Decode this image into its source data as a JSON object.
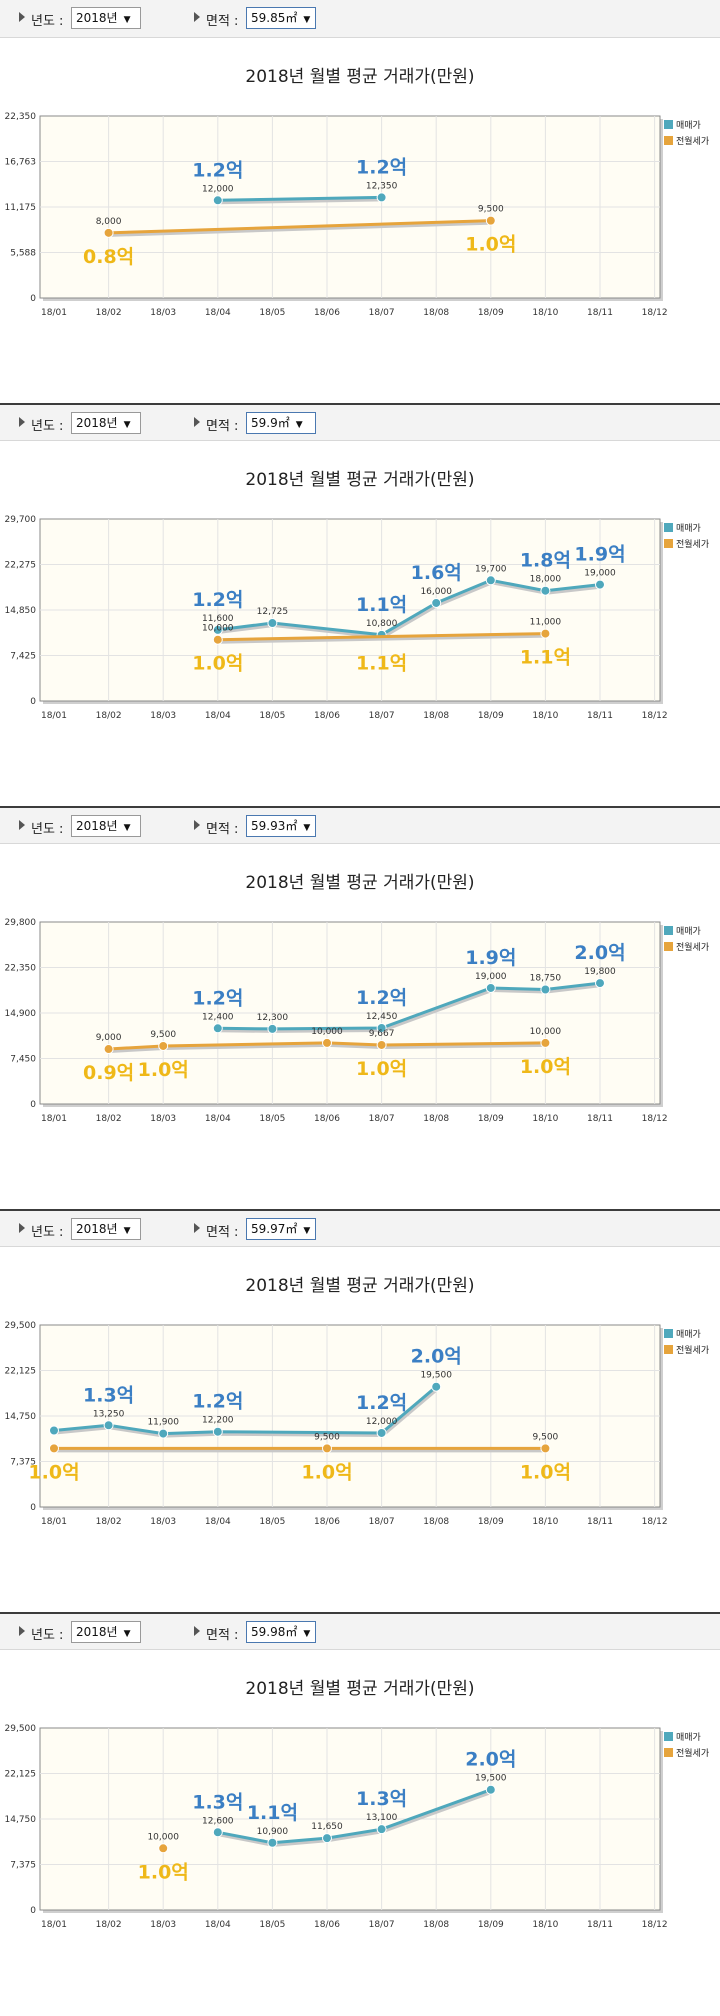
{
  "colors": {
    "trade": "#4fa8bc",
    "jeonse": "#e6a43c",
    "trade_label": "#3b7fc4",
    "jeonse_label": "#efb818",
    "plot_bg": "#fffdf4",
    "grid": "#e3e3e3"
  },
  "controls": {
    "year_label": "년도 :",
    "area_label": "면적 :",
    "year_value": "2018년"
  },
  "icons": [
    "dropdown-arrow-icon",
    "caret-down-icon"
  ],
  "chart_data": [
    {
      "type": "line",
      "area_value": "59.85㎡",
      "title": "2018년 월별 평균 거래가(만원)",
      "categories": [
        "18/01",
        "18/02",
        "18/03",
        "18/04",
        "18/05",
        "18/06",
        "18/07",
        "18/08",
        "18/09",
        "18/10",
        "18/11",
        "18/12"
      ],
      "yticks": [
        "0",
        "5,588",
        "11,175",
        "16,763",
        "22,350"
      ],
      "ylim": [
        0,
        22350
      ],
      "legend": [
        "매매가",
        "전월세가"
      ],
      "legend_position": "top-right",
      "grid": true,
      "series": [
        {
          "name": "매매가",
          "values": [
            null,
            null,
            null,
            12000,
            null,
            null,
            12350,
            null,
            null,
            null,
            null,
            null
          ],
          "labels": [
            null,
            null,
            null,
            "12,000",
            null,
            null,
            "12,350",
            null,
            null,
            null,
            null,
            null
          ],
          "big_labels": [
            null,
            null,
            null,
            "1.2억",
            null,
            null,
            "1.2억",
            null,
            null,
            null,
            null,
            null
          ]
        },
        {
          "name": "전월세가",
          "values": [
            null,
            8000,
            null,
            null,
            null,
            null,
            null,
            null,
            9500,
            null,
            null,
            null
          ],
          "labels": [
            null,
            "8,000",
            null,
            null,
            null,
            null,
            null,
            null,
            "9,500",
            null,
            null,
            null
          ],
          "big_labels": [
            null,
            "0.8억",
            null,
            null,
            null,
            null,
            null,
            null,
            "1.0억",
            null,
            null,
            null
          ]
        }
      ]
    },
    {
      "type": "line",
      "area_value": "59.9㎡",
      "title": "2018년 월별 평균 거래가(만원)",
      "categories": [
        "18/01",
        "18/02",
        "18/03",
        "18/04",
        "18/05",
        "18/06",
        "18/07",
        "18/08",
        "18/09",
        "18/10",
        "18/11",
        "18/12"
      ],
      "yticks": [
        "0",
        "7,425",
        "14,850",
        "22,275",
        "29,700"
      ],
      "ylim": [
        0,
        29700
      ],
      "legend": [
        "매매가",
        "전월세가"
      ],
      "legend_position": "top-right",
      "grid": true,
      "series": [
        {
          "name": "매매가",
          "values": [
            null,
            null,
            null,
            11600,
            12725,
            null,
            10800,
            16000,
            19700,
            18000,
            19000,
            null
          ],
          "labels": [
            null,
            null,
            null,
            "11,600",
            "12,725",
            null,
            "10,800",
            "16,000",
            "19,700",
            "18,000",
            "19,000",
            null
          ],
          "big_labels": [
            null,
            null,
            null,
            "1.2억",
            null,
            null,
            "1.1억",
            "1.6억",
            null,
            "1.8억",
            "1.9억",
            null
          ]
        },
        {
          "name": "전월세가",
          "values": [
            null,
            null,
            null,
            10000,
            null,
            null,
            null,
            null,
            null,
            11000,
            null,
            null
          ],
          "labels": [
            null,
            null,
            null,
            "10,000",
            null,
            null,
            null,
            null,
            null,
            "11,000",
            null,
            null
          ],
          "big_labels": [
            null,
            null,
            null,
            "1.0억",
            null,
            null,
            "1.1억",
            null,
            null,
            "1.1억",
            null,
            null
          ]
        }
      ]
    },
    {
      "type": "line",
      "area_value": "59.93㎡",
      "title": "2018년 월별 평균 거래가(만원)",
      "categories": [
        "18/01",
        "18/02",
        "18/03",
        "18/04",
        "18/05",
        "18/06",
        "18/07",
        "18/08",
        "18/09",
        "18/10",
        "18/11",
        "18/12"
      ],
      "yticks": [
        "0",
        "7,450",
        "14,900",
        "22,350",
        "29,800"
      ],
      "ylim": [
        0,
        29800
      ],
      "legend": [
        "매매가",
        "전월세가"
      ],
      "legend_position": "top-right",
      "grid": true,
      "series": [
        {
          "name": "매매가",
          "values": [
            null,
            null,
            null,
            12400,
            12300,
            null,
            12450,
            null,
            19000,
            18750,
            19800,
            null
          ],
          "labels": [
            null,
            null,
            null,
            "12,400",
            "12,300",
            null,
            "12,450",
            null,
            "19,000",
            "18,750",
            "19,800",
            null
          ],
          "big_labels": [
            null,
            null,
            null,
            "1.2억",
            null,
            null,
            "1.2억",
            null,
            "1.9억",
            null,
            "2.0억",
            null
          ]
        },
        {
          "name": "전월세가",
          "values": [
            null,
            9000,
            9500,
            null,
            null,
            10000,
            9667,
            null,
            null,
            10000,
            null,
            null
          ],
          "labels": [
            null,
            "9,000",
            "9,500",
            null,
            null,
            "10,000",
            "9,667",
            null,
            null,
            "10,000",
            null,
            null
          ],
          "big_labels": [
            null,
            "0.9억",
            "1.0억",
            null,
            null,
            null,
            "1.0억",
            null,
            null,
            "1.0억",
            null,
            null
          ]
        }
      ]
    },
    {
      "type": "line",
      "area_value": "59.97㎡",
      "title": "2018년 월별 평균 거래가(만원)",
      "categories": [
        "18/01",
        "18/02",
        "18/03",
        "18/04",
        "18/05",
        "18/06",
        "18/07",
        "18/08",
        "18/09",
        "18/10",
        "18/11",
        "18/12"
      ],
      "yticks": [
        "0",
        "7,375",
        "14,750",
        "22,125",
        "29,500"
      ],
      "ylim": [
        0,
        29500
      ],
      "legend": [
        "매매가",
        "전월세가"
      ],
      "legend_position": "top-right",
      "grid": true,
      "series": [
        {
          "name": "매매가",
          "values": [
            12400,
            13250,
            11900,
            12200,
            null,
            null,
            12000,
            19500,
            null,
            null,
            null,
            null
          ],
          "labels": [
            null,
            "13,250",
            "11,900",
            "12,200",
            null,
            null,
            "12,000",
            "19,500",
            null,
            null,
            null,
            null
          ],
          "big_labels": [
            null,
            "1.3억",
            null,
            "1.2억",
            null,
            null,
            "1.2억",
            "2.0억",
            null,
            null,
            null,
            null
          ]
        },
        {
          "name": "전월세가",
          "values": [
            9500,
            null,
            null,
            null,
            null,
            9500,
            null,
            null,
            null,
            9500,
            null,
            null
          ],
          "labels": [
            null,
            null,
            null,
            null,
            null,
            "9,500",
            null,
            null,
            null,
            "9,500",
            null,
            null
          ],
          "big_labels": [
            "1.0억",
            null,
            null,
            null,
            null,
            "1.0억",
            null,
            null,
            null,
            "1.0억",
            null,
            null
          ]
        }
      ]
    },
    {
      "type": "line",
      "area_value": "59.98㎡",
      "title": "2018년 월별 평균 거래가(만원)",
      "categories": [
        "18/01",
        "18/02",
        "18/03",
        "18/04",
        "18/05",
        "18/06",
        "18/07",
        "18/08",
        "18/09",
        "18/10",
        "18/11",
        "18/12"
      ],
      "yticks": [
        "0",
        "7,375",
        "14,750",
        "22,125",
        "29,500"
      ],
      "ylim": [
        0,
        29500
      ],
      "legend": [
        "매매가",
        "전월세가"
      ],
      "legend_position": "top-right",
      "grid": true,
      "series": [
        {
          "name": "매매가",
          "values": [
            null,
            null,
            null,
            12600,
            10900,
            11650,
            13100,
            null,
            19500,
            null,
            null,
            null
          ],
          "labels": [
            null,
            null,
            null,
            "12,600",
            "10,900",
            "11,650",
            "13,100",
            null,
            "19,500",
            null,
            null,
            null
          ],
          "big_labels": [
            null,
            null,
            null,
            "1.3억",
            "1.1억",
            null,
            "1.3억",
            null,
            "2.0억",
            null,
            null,
            null
          ]
        },
        {
          "name": "전월세가",
          "values": [
            null,
            null,
            10000,
            null,
            null,
            null,
            null,
            null,
            null,
            null,
            null,
            null
          ],
          "labels": [
            null,
            null,
            "10,000",
            null,
            null,
            null,
            null,
            null,
            null,
            null,
            null,
            null
          ],
          "big_labels": [
            null,
            null,
            "1.0억",
            null,
            null,
            null,
            null,
            null,
            null,
            null,
            null,
            null
          ]
        }
      ]
    }
  ]
}
